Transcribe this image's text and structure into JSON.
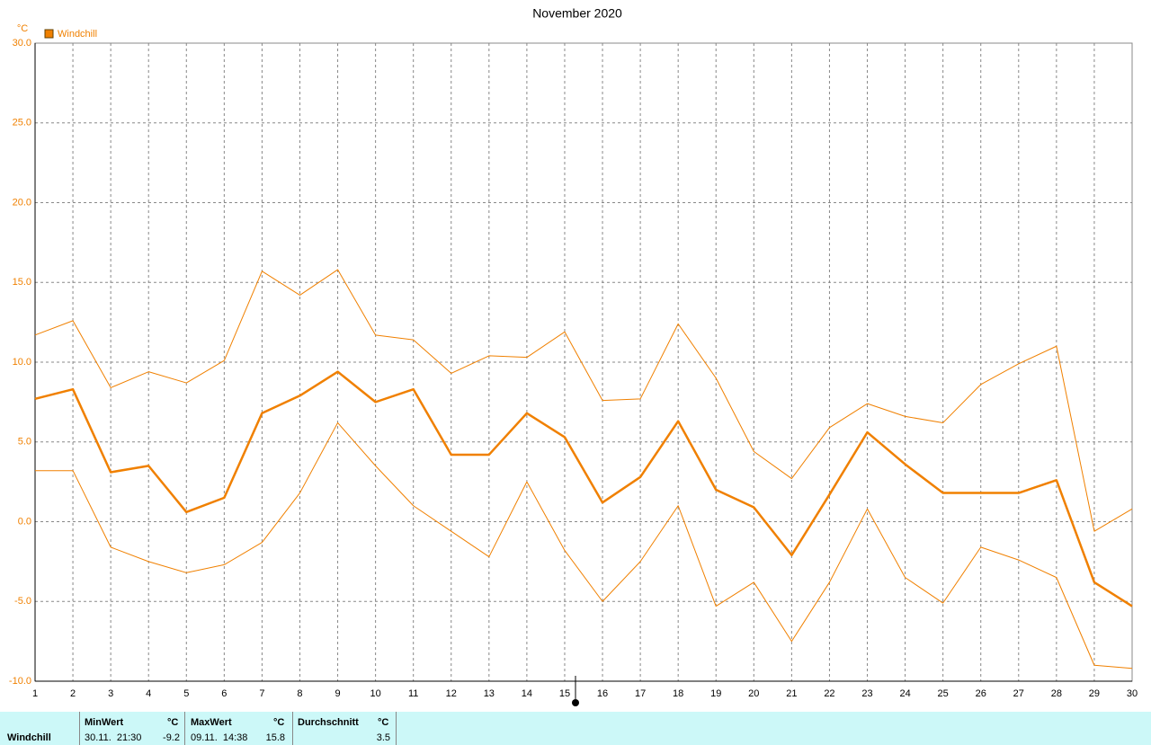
{
  "chart_data": {
    "type": "line",
    "title": "November 2020",
    "y_unit": "°C",
    "x": [
      1,
      2,
      3,
      4,
      5,
      6,
      7,
      8,
      9,
      10,
      11,
      12,
      13,
      14,
      15,
      16,
      17,
      18,
      19,
      20,
      21,
      22,
      23,
      24,
      25,
      26,
      27,
      28,
      29,
      30
    ],
    "xlim": [
      1,
      30
    ],
    "xticks": [
      1,
      2,
      3,
      4,
      5,
      6,
      7,
      8,
      9,
      10,
      11,
      12,
      13,
      14,
      15,
      16,
      17,
      18,
      19,
      20,
      21,
      22,
      23,
      24,
      25,
      26,
      27,
      28,
      29,
      30
    ],
    "ylim": [
      -10,
      30
    ],
    "yticks": [
      {
        "value": -10,
        "label": "-10.0"
      },
      {
        "value": -5,
        "label": "-5.0"
      },
      {
        "value": 0,
        "label": "0.0"
      },
      {
        "value": 5,
        "label": "5.0"
      },
      {
        "value": 10,
        "label": "10.0"
      },
      {
        "value": 15,
        "label": "15.0"
      },
      {
        "value": 20,
        "label": "20.0"
      },
      {
        "value": 25,
        "label": "25.0"
      },
      {
        "value": 30,
        "label": "30.0"
      }
    ],
    "grid": true,
    "series": [
      {
        "color": "#f08000",
        "values": [
          11.7,
          12.6,
          8.4,
          9.4,
          8.7,
          10.1,
          15.7,
          14.2,
          15.8,
          11.7,
          11.4,
          9.3,
          10.4,
          10.3,
          11.9,
          7.6,
          7.7,
          12.4,
          9.0,
          4.4,
          2.7,
          5.9,
          7.4,
          6.6,
          6.2,
          8.6,
          9.9,
          11.0,
          -0.6,
          0.8
        ]
      },
      {
        "name": "Windchill",
        "color": "#f08000",
        "values": [
          7.7,
          8.3,
          3.1,
          3.5,
          0.6,
          1.5,
          6.8,
          7.9,
          9.4,
          7.5,
          8.3,
          4.2,
          4.2,
          6.8,
          5.3,
          1.2,
          2.8,
          6.3,
          2.0,
          0.9,
          -2.1,
          1.7,
          5.6,
          3.6,
          1.8,
          1.8,
          1.8,
          2.6,
          -3.8,
          -5.3
        ]
      },
      {
        "color": "#f08000",
        "values": [
          3.2,
          3.2,
          -1.6,
          -2.5,
          -3.2,
          -2.7,
          -1.3,
          1.8,
          6.2,
          3.5,
          1.0,
          -0.6,
          -2.2,
          2.5,
          -1.8,
          -5.0,
          -2.5,
          1.0,
          -5.3,
          -3.8,
          -7.5,
          -3.8,
          0.8,
          -3.5,
          -5.1,
          -1.6,
          -2.4,
          -3.5,
          -9.0,
          -9.2
        ]
      }
    ]
  },
  "table": {
    "label": "Windchill",
    "columns": [
      {
        "header": "MinWert",
        "unit": "°C",
        "time": "30.11.  21:30",
        "value": -9.2
      },
      {
        "header": "MaxWert",
        "unit": "°C",
        "time": "09.11.  14:38",
        "value": 15.8
      },
      {
        "header": "Durchschnitt",
        "unit": "°C",
        "value": 3.5
      }
    ]
  }
}
